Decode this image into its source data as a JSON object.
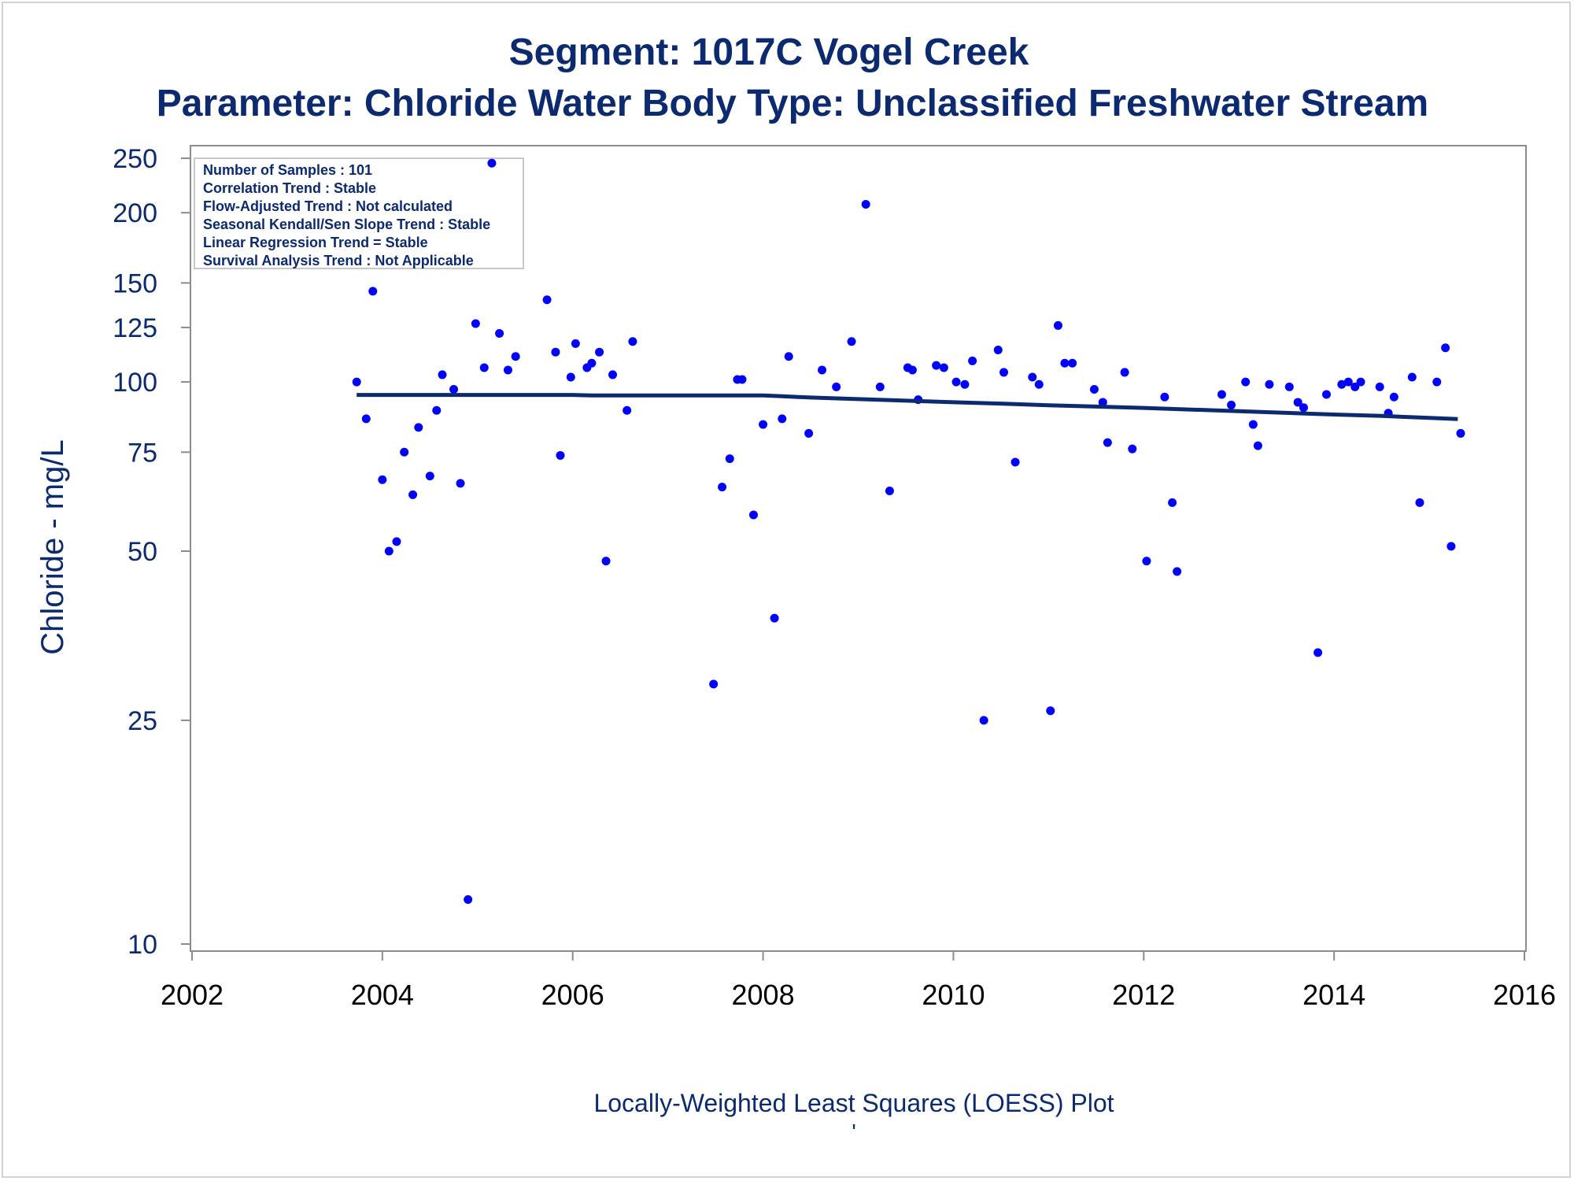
{
  "chart_data": {
    "type": "scatter",
    "title": "Segment: 1017C  Vogel Creek",
    "subtitle": "Parameter: Chloride   Water Body Type: Unclassified Freshwater Stream",
    "ylabel": "Chloride - mg/L",
    "xlabel": "",
    "footnote": "Locally-Weighted Least Squares (LOESS) Plot",
    "footnote2": "'",
    "y_scale": "log",
    "ylim": [
      10,
      250
    ],
    "xlim": [
      2002,
      2016
    ],
    "y_ticks": [
      10,
      25,
      50,
      75,
      100,
      125,
      150,
      200,
      250
    ],
    "x_ticks": [
      2002,
      2004,
      2006,
      2008,
      2010,
      2012,
      2014,
      2016
    ],
    "grid": false,
    "legend_position": "top-left",
    "stats": [
      "Number of Samples : 101",
      "Correlation Trend : Stable",
      "Flow-Adjusted Trend : Not calculated",
      "Seasonal Kendall/Sen Slope Trend : Stable",
      "Linear Regression Trend = Stable",
      "Survival Analysis Trend : Not Applicable"
    ],
    "colors": {
      "points": "#0000ff",
      "trend": "#0b2a6f",
      "text": "#0b2a6f",
      "axis": "#8c8c8c"
    },
    "series": [
      {
        "type": "scatter",
        "points": [
          [
            2003.73,
            100
          ],
          [
            2003.83,
            86
          ],
          [
            2003.9,
            145
          ],
          [
            2004.0,
            67
          ],
          [
            2004.07,
            50
          ],
          [
            2004.15,
            52
          ],
          [
            2004.23,
            75
          ],
          [
            2004.32,
            63
          ],
          [
            2004.38,
            83
          ],
          [
            2004.5,
            68
          ],
          [
            2004.57,
            89
          ],
          [
            2004.63,
            103
          ],
          [
            2004.75,
            97
          ],
          [
            2004.82,
            66
          ],
          [
            2004.9,
            12
          ],
          [
            2004.98,
            127
          ],
          [
            2005.07,
            106
          ],
          [
            2005.15,
            245
          ],
          [
            2005.23,
            122
          ],
          [
            2005.32,
            105
          ],
          [
            2005.4,
            111
          ],
          [
            2005.73,
            140
          ],
          [
            2005.82,
            113
          ],
          [
            2005.87,
            74
          ],
          [
            2005.98,
            102
          ],
          [
            2006.03,
            117
          ],
          [
            2006.15,
            106
          ],
          [
            2006.2,
            108
          ],
          [
            2006.28,
            113
          ],
          [
            2006.35,
            48
          ],
          [
            2006.42,
            103
          ],
          [
            2006.57,
            89
          ],
          [
            2006.63,
            118
          ],
          [
            2007.48,
            29
          ],
          [
            2007.57,
            65
          ],
          [
            2007.65,
            73
          ],
          [
            2007.73,
            101
          ],
          [
            2007.78,
            101
          ],
          [
            2007.9,
            58
          ],
          [
            2008.0,
            84
          ],
          [
            2008.12,
            38
          ],
          [
            2008.2,
            86
          ],
          [
            2008.27,
            111
          ],
          [
            2008.48,
            81
          ],
          [
            2008.62,
            105
          ],
          [
            2008.77,
            98
          ],
          [
            2008.93,
            118
          ],
          [
            2009.08,
            207
          ],
          [
            2009.23,
            98
          ],
          [
            2009.33,
            64
          ],
          [
            2009.52,
            106
          ],
          [
            2009.57,
            105
          ],
          [
            2009.63,
            93
          ],
          [
            2009.82,
            107
          ],
          [
            2009.9,
            106
          ],
          [
            2010.03,
            100
          ],
          [
            2010.12,
            99
          ],
          [
            2010.2,
            109
          ],
          [
            2010.32,
            25
          ],
          [
            2010.47,
            114
          ],
          [
            2010.53,
            104
          ],
          [
            2010.65,
            72
          ],
          [
            2010.83,
            102
          ],
          [
            2010.9,
            99
          ],
          [
            2011.02,
            26
          ],
          [
            2011.1,
            126
          ],
          [
            2011.17,
            108
          ],
          [
            2011.25,
            108
          ],
          [
            2011.48,
            97
          ],
          [
            2011.57,
            92
          ],
          [
            2011.62,
            78
          ],
          [
            2011.8,
            104
          ],
          [
            2011.88,
            76
          ],
          [
            2012.03,
            48
          ],
          [
            2012.22,
            94
          ],
          [
            2012.3,
            61
          ],
          [
            2012.35,
            46
          ],
          [
            2012.82,
            95
          ],
          [
            2012.92,
            91
          ],
          [
            2013.07,
            100
          ],
          [
            2013.15,
            84
          ],
          [
            2013.2,
            77
          ],
          [
            2013.32,
            99
          ],
          [
            2013.53,
            98
          ],
          [
            2013.62,
            92
          ],
          [
            2013.68,
            90
          ],
          [
            2013.83,
            33
          ],
          [
            2013.92,
            95
          ],
          [
            2014.08,
            99
          ],
          [
            2014.15,
            100
          ],
          [
            2014.22,
            98
          ],
          [
            2014.28,
            100
          ],
          [
            2014.48,
            98
          ],
          [
            2014.57,
            88
          ],
          [
            2014.63,
            94
          ],
          [
            2014.82,
            102
          ],
          [
            2014.9,
            61
          ],
          [
            2015.08,
            100
          ],
          [
            2015.17,
            115
          ],
          [
            2015.23,
            51
          ],
          [
            2015.33,
            81
          ]
        ]
      },
      {
        "type": "line",
        "points": [
          [
            2003.73,
            94.8
          ],
          [
            2004.5,
            94.8
          ],
          [
            2005.5,
            94.8
          ],
          [
            2006.0,
            94.8
          ],
          [
            2006.2,
            94.6
          ],
          [
            2007.0,
            94.6
          ],
          [
            2008.0,
            94.6
          ],
          [
            2008.2,
            94.3
          ],
          [
            2008.5,
            93.8
          ],
          [
            2009.0,
            93.2
          ],
          [
            2009.5,
            92.6
          ],
          [
            2010.0,
            92.0
          ],
          [
            2010.5,
            91.5
          ],
          [
            2011.0,
            90.9
          ],
          [
            2011.5,
            90.4
          ],
          [
            2012.0,
            89.9
          ],
          [
            2012.5,
            89.3
          ],
          [
            2013.0,
            88.7
          ],
          [
            2013.5,
            88.1
          ],
          [
            2014.0,
            87.5
          ],
          [
            2014.5,
            87.0
          ],
          [
            2015.0,
            86.3
          ],
          [
            2015.3,
            85.9
          ]
        ]
      }
    ]
  }
}
